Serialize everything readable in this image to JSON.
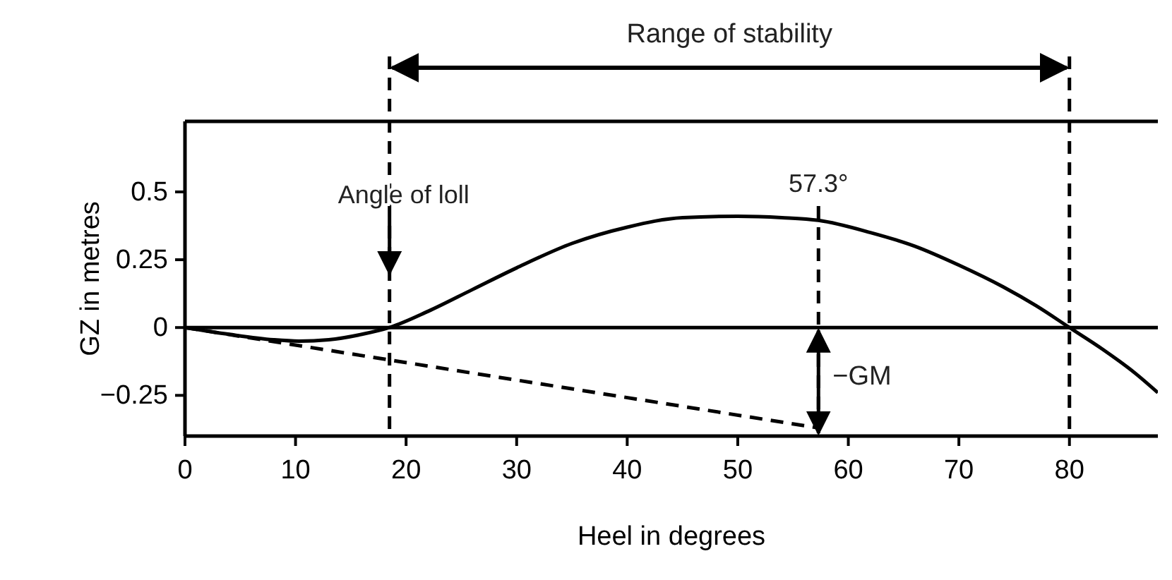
{
  "chart_data": {
    "type": "line",
    "xlabel": "Heel in degrees",
    "ylabel": "GZ in metres",
    "xlim": [
      0,
      88
    ],
    "ylim": [
      -0.4,
      0.76
    ],
    "xticks": [
      0,
      10,
      20,
      30,
      40,
      50,
      60,
      70,
      80
    ],
    "yticks": [
      {
        "value": -0.25,
        "label": "−0.25"
      },
      0,
      0.25,
      0.5
    ],
    "marker": "none",
    "series": [
      {
        "color": "#000000",
        "line_style": "solid",
        "x": [
          0,
          4,
          8,
          10.3,
          13,
          16,
          18.5,
          22,
          26,
          30,
          35,
          40,
          45,
          50,
          54,
          57.3,
          62,
          66,
          70,
          74,
          77,
          80,
          83,
          86,
          88
        ],
        "values": [
          0,
          -0.025,
          -0.045,
          -0.05,
          -0.045,
          -0.025,
          0,
          0.06,
          0.14,
          0.22,
          0.31,
          0.37,
          0.405,
          0.41,
          0.405,
          0.395,
          0.35,
          0.3,
          0.23,
          0.15,
          0.08,
          0,
          -0.08,
          -0.17,
          -0.24
        ]
      },
      {
        "color": "#000000",
        "line_style": "dashed",
        "x": [
          0,
          57.3
        ],
        "values": [
          0,
          -0.37
        ]
      }
    ],
    "ref_lines": [
      {
        "axis": "y",
        "value": 0,
        "line_style": "solid"
      },
      {
        "axis": "x",
        "value": 18.5,
        "label": "Angle of loll",
        "line_style": "dashed"
      },
      {
        "axis": "x",
        "value": 57.3,
        "label": "57.3°",
        "line_style": "dashed"
      },
      {
        "axis": "x",
        "value": 80,
        "line_style": "dashed"
      }
    ],
    "annotations": [
      "Range of stability",
      {
        "text": "−GM",
        "x": 57.3,
        "y": -0.18
      }
    ]
  }
}
